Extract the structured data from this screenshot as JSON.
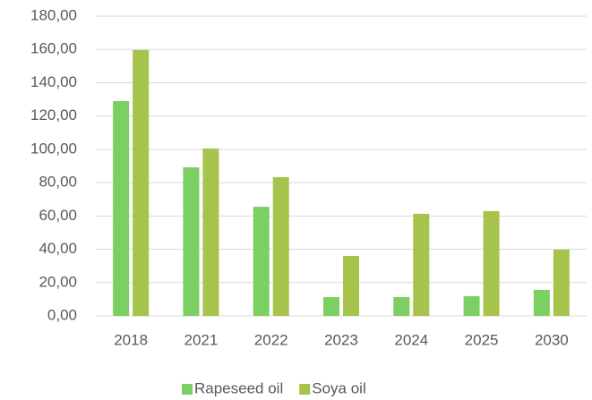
{
  "chart_data": {
    "type": "bar",
    "categories": [
      "2018",
      "2021",
      "2022",
      "2023",
      "2024",
      "2025",
      "2030"
    ],
    "series": [
      {
        "name": "Rapeseed oil",
        "color": "#7ccf62",
        "values": [
          129,
          89.2,
          65.5,
          11.3,
          11.3,
          11.8,
          15.6
        ]
      },
      {
        "name": "Soya oil",
        "color": "#a6c34b",
        "values": [
          159.6,
          100.5,
          83.3,
          36,
          61.3,
          62.9,
          39.8
        ]
      }
    ],
    "ylim": [
      0,
      180
    ],
    "yticks": [
      {
        "value": 0,
        "label": "0,00"
      },
      {
        "value": 20,
        "label": "20,00"
      },
      {
        "value": 40,
        "label": "40,00"
      },
      {
        "value": 60,
        "label": "60,00"
      },
      {
        "value": 80,
        "label": "80,00"
      },
      {
        "value": 100,
        "label": "100,00"
      },
      {
        "value": 120,
        "label": "120,00"
      },
      {
        "value": 140,
        "label": "140,00"
      },
      {
        "value": 160,
        "label": "160,00"
      },
      {
        "value": 180,
        "label": "180,00"
      }
    ],
    "grid": true,
    "legend": "bottom"
  }
}
